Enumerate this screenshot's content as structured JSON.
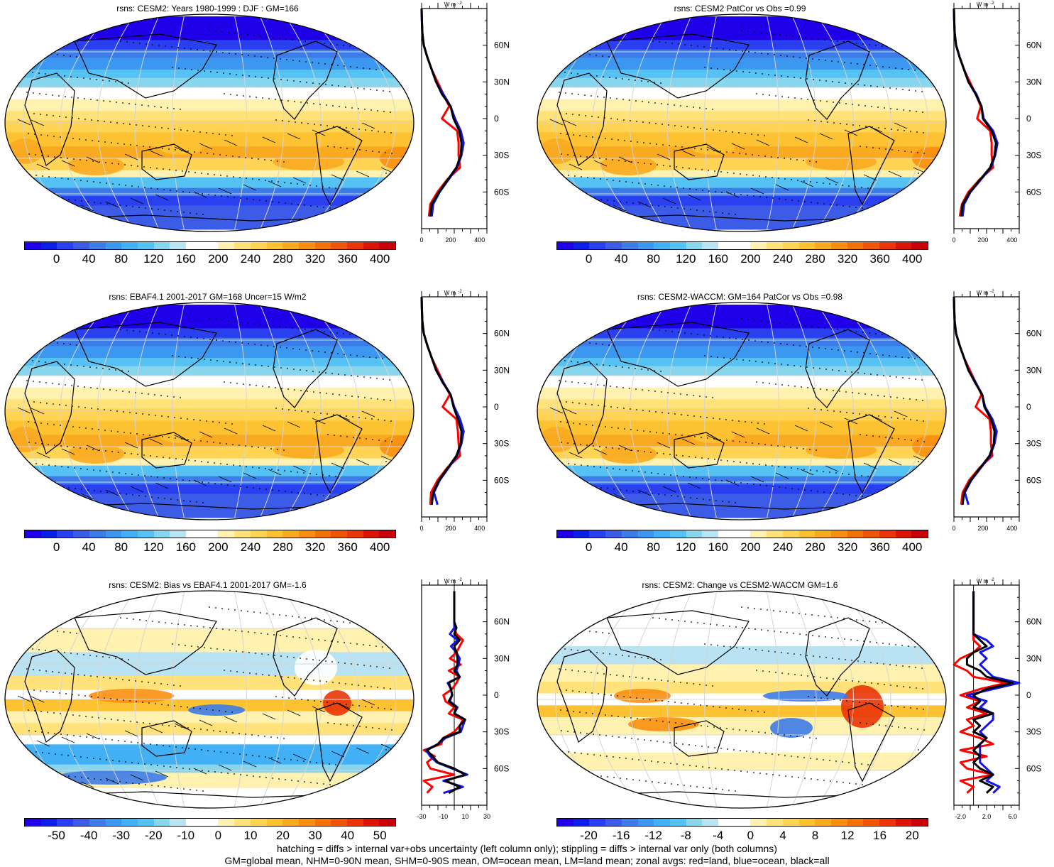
{
  "colors": {
    "abs_scale": [
      "#1f00e8",
      "#0a1ee8",
      "#2a3ff0",
      "#3c5ce8",
      "#3d7be8",
      "#3b97f0",
      "#42b0f5",
      "#56c2f3",
      "#88d5ee",
      "#b9e3f2",
      "#ffffff",
      "#ffffff",
      "#fff2b0",
      "#ffe27a",
      "#ffd354",
      "#fcc232",
      "#faaa20",
      "#f98f10",
      "#f37208",
      "#ee5508",
      "#e93507",
      "#dd1404",
      "#c8000a"
    ],
    "diff_scale": [
      "#1f00e8",
      "#0a1ee8",
      "#2a3ff0",
      "#3c5ce8",
      "#3d7be8",
      "#3b97f0",
      "#42b0f5",
      "#56c2f3",
      "#88d5ee",
      "#b9e3f2",
      "#ffffff",
      "#ffffff",
      "#fff2b0",
      "#ffe27a",
      "#ffd354",
      "#fcc232",
      "#faaa20",
      "#f98f10",
      "#f37208",
      "#ee5508",
      "#e93507",
      "#dd1404",
      "#c8000a"
    ],
    "land": "#ff0000",
    "ocean": "#1414e6",
    "all": "#000000"
  },
  "zonal_common": {
    "unit": "W m",
    "unit_sup": "-2",
    "lat_ticks": [
      "60N",
      "30N",
      "0",
      "30S",
      "60S"
    ]
  },
  "chart_data": [
    {
      "type": "heatmap",
      "title": "rsns: CESM2: Years 1980-1999 : DJF : GM=166",
      "colorbar_ticks": [
        "0",
        "40",
        "80",
        "120",
        "160",
        "200",
        "240",
        "280",
        "320",
        "360",
        "400"
      ],
      "zonal": {
        "title": "",
        "xlim": [
          0,
          450
        ],
        "xticks": [
          "0",
          "200",
          "400"
        ],
        "ylim": [
          -90,
          90
        ],
        "lat": [
          -80,
          -70,
          -60,
          -50,
          -40,
          -30,
          -20,
          -10,
          0,
          10,
          20,
          30,
          40,
          50,
          60,
          70,
          80,
          90
        ],
        "all": [
          60,
          70,
          120,
          180,
          240,
          270,
          275,
          260,
          220,
          200,
          140,
          100,
          70,
          40,
          15,
          5,
          2,
          0
        ],
        "ocean": [
          70,
          80,
          125,
          185,
          245,
          275,
          290,
          270,
          230,
          200,
          150,
          100,
          70,
          40,
          15,
          5,
          2,
          0
        ],
        "land": [
          50,
          60,
          110,
          175,
          265,
          255,
          255,
          245,
          140,
          190,
          150,
          110,
          70,
          40,
          15,
          5,
          2,
          0
        ]
      }
    },
    {
      "type": "heatmap",
      "title": "rsns: CESM2 PatCor vs Obs =0.99",
      "colorbar_ticks": [
        "0",
        "40",
        "80",
        "120",
        "160",
        "200",
        "240",
        "280",
        "320",
        "360",
        "400"
      ],
      "zonal": {
        "xlim": [
          0,
          450
        ],
        "xticks": [
          "0",
          "200",
          "400"
        ],
        "ylim": [
          -90,
          90
        ],
        "lat": [
          -80,
          -70,
          -60,
          -50,
          -40,
          -30,
          -20,
          -10,
          0,
          10,
          20,
          30,
          40,
          50,
          60,
          70,
          80,
          90
        ],
        "all": [
          50,
          60,
          110,
          180,
          250,
          280,
          290,
          260,
          200,
          190,
          150,
          100,
          70,
          40,
          15,
          5,
          2,
          0
        ],
        "ocean": [
          60,
          70,
          115,
          185,
          255,
          285,
          300,
          270,
          205,
          190,
          155,
          100,
          70,
          40,
          15,
          5,
          2,
          0
        ],
        "land": [
          40,
          55,
          100,
          175,
          270,
          260,
          260,
          250,
          160,
          185,
          150,
          110,
          70,
          40,
          15,
          5,
          2,
          0
        ]
      }
    },
    {
      "type": "heatmap",
      "title": "rsns: EBAF4.1 2001-2017 GM=168 Uncer=15 W/m2",
      "colorbar_ticks": [
        "0",
        "40",
        "80",
        "120",
        "160",
        "200",
        "240",
        "280",
        "320",
        "360",
        "400"
      ],
      "zonal": {
        "xlim": [
          0,
          450
        ],
        "xticks": [
          "0",
          "200",
          "400"
        ],
        "ylim": [
          -90,
          90
        ],
        "lat": [
          -80,
          -70,
          -60,
          -50,
          -40,
          -30,
          -20,
          -10,
          0,
          10,
          20,
          30,
          40,
          50,
          60,
          70,
          80,
          90
        ],
        "all": [
          70,
          80,
          120,
          180,
          240,
          270,
          275,
          250,
          220,
          200,
          145,
          100,
          70,
          40,
          15,
          5,
          2,
          0
        ],
        "ocean": [
          110,
          85,
          125,
          185,
          245,
          275,
          290,
          265,
          225,
          200,
          150,
          100,
          70,
          40,
          15,
          5,
          2,
          0
        ],
        "land": [
          60,
          65,
          110,
          175,
          265,
          255,
          250,
          240,
          145,
          195,
          150,
          110,
          70,
          40,
          15,
          5,
          2,
          0
        ]
      }
    },
    {
      "type": "heatmap",
      "title": "rsns: CESM2-WACCM: GM=164 PatCor vs Obs =0.98",
      "colorbar_ticks": [
        "0",
        "40",
        "80",
        "120",
        "160",
        "200",
        "240",
        "280",
        "320",
        "360",
        "400"
      ],
      "zonal": {
        "xlim": [
          0,
          450
        ],
        "xticks": [
          "0",
          "200",
          "400"
        ],
        "ylim": [
          -90,
          90
        ],
        "lat": [
          -80,
          -70,
          -60,
          -50,
          -40,
          -30,
          -20,
          -10,
          0,
          10,
          20,
          30,
          40,
          50,
          60,
          70,
          80,
          90
        ],
        "all": [
          60,
          70,
          115,
          180,
          245,
          275,
          280,
          255,
          210,
          195,
          145,
          100,
          70,
          40,
          15,
          5,
          2,
          0
        ],
        "ocean": [
          100,
          75,
          120,
          185,
          250,
          280,
          295,
          265,
          215,
          195,
          150,
          100,
          70,
          40,
          15,
          5,
          2,
          0
        ],
        "land": [
          50,
          60,
          105,
          175,
          265,
          255,
          255,
          245,
          150,
          190,
          150,
          110,
          70,
          40,
          15,
          5,
          2,
          0
        ]
      }
    },
    {
      "type": "heatmap",
      "title": "rsns: CESM2: Bias vs EBAF4.1 2001-2017 GM=-1.6",
      "colorbar_ticks": [
        "-50",
        "-40",
        "-30",
        "-20",
        "-10",
        "0",
        "10",
        "20",
        "30",
        "40",
        "50"
      ],
      "zonal": {
        "xlim": [
          -30,
          30
        ],
        "xticks": [
          "-30",
          "-10",
          "10",
          "30"
        ],
        "ylim": [
          -90,
          90
        ],
        "lat": [
          -80,
          -75,
          -70,
          -65,
          -60,
          -55,
          -50,
          -45,
          -40,
          -35,
          -30,
          -25,
          -20,
          -15,
          -10,
          -5,
          0,
          5,
          10,
          15,
          20,
          25,
          30,
          35,
          40,
          45,
          50,
          55,
          60,
          65,
          70,
          75,
          80,
          85
        ],
        "all": [
          -5,
          5,
          -8,
          10,
          0,
          -15,
          -20,
          -25,
          -15,
          -10,
          5,
          5,
          10,
          0,
          2,
          -5,
          -2,
          -3,
          -5,
          5,
          0,
          3,
          3,
          2,
          0,
          5,
          0,
          2,
          0,
          0,
          0,
          0,
          0,
          0
        ],
        "ocean": [
          -10,
          8,
          -10,
          12,
          -2,
          -16,
          -22,
          -26,
          -15,
          -8,
          6,
          8,
          10,
          0,
          3,
          -4,
          -2,
          -3,
          -6,
          5,
          2,
          4,
          5,
          2,
          -3,
          3,
          -4,
          0,
          0,
          0,
          0,
          0,
          0,
          0
        ],
        "land": [
          -25,
          -20,
          -28,
          0,
          -22,
          -25,
          -18,
          -28,
          -12,
          -10,
          0,
          5,
          8,
          -5,
          0,
          -8,
          -10,
          -2,
          2,
          5,
          -5,
          6,
          -4,
          2,
          5,
          8,
          2,
          0,
          0,
          0,
          0,
          0,
          0,
          0
        ]
      }
    },
    {
      "type": "heatmap",
      "title": "rsns: CESM2: Change vs CESM2-WACCM GM=1.6",
      "colorbar_ticks": [
        "-20",
        "-16",
        "-12",
        "-8",
        "-4",
        "0",
        "4",
        "8",
        "12",
        "16",
        "20"
      ],
      "zonal": {
        "xlim": [
          -3,
          7
        ],
        "xticks": [
          "-2.0",
          "2.0",
          "6.0"
        ],
        "ylim": [
          -90,
          90
        ],
        "lat": [
          -80,
          -75,
          -70,
          -65,
          -60,
          -55,
          -50,
          -45,
          -40,
          -35,
          -30,
          -25,
          -20,
          -15,
          -10,
          -5,
          0,
          5,
          10,
          15,
          20,
          25,
          30,
          35,
          40,
          45,
          50,
          55,
          60,
          65,
          70,
          75,
          80,
          85
        ],
        "all": [
          2,
          3,
          1,
          3,
          1,
          0,
          1,
          0,
          1,
          2,
          0,
          1,
          0,
          3,
          0,
          1,
          0,
          2,
          6,
          2,
          1,
          -1,
          -1,
          0,
          2,
          1,
          0,
          0,
          0,
          0,
          0,
          0,
          0,
          0
        ],
        "ocean": [
          3,
          4,
          2,
          3,
          2,
          1,
          1,
          1,
          1,
          2,
          1,
          2,
          3,
          3,
          1,
          2,
          -1,
          3,
          7,
          3,
          2,
          1,
          2,
          1,
          3,
          2,
          0,
          0,
          0,
          0,
          0,
          0,
          0,
          0
        ],
        "land": [
          -1,
          0,
          -2,
          3,
          -1,
          -2,
          2,
          -2,
          3,
          1,
          -2,
          0,
          -1,
          2,
          -1,
          1,
          -2,
          1,
          5,
          0,
          -1,
          -3,
          -2,
          0,
          1,
          0,
          0,
          0,
          0,
          0,
          0,
          0,
          0,
          0
        ]
      }
    }
  ],
  "footer": {
    "line1": "hatching = diffs > internal var+obs uncertainty (left column only); stippling = diffs > internal var only (both columns)",
    "line2": "GM=global mean, NHM=0-90N mean, SHM=0-90S mean, OM=ocean mean, LM=land mean; zonal avgs: red=land, blue=ocean, black=all"
  }
}
